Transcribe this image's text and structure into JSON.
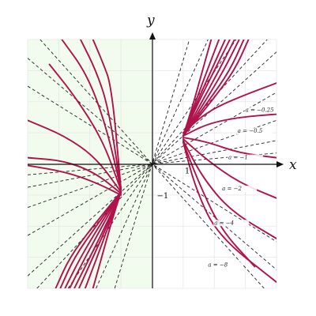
{
  "chart_data": {
    "type": "line",
    "title": "",
    "xlabel": "x",
    "ylabel": "y",
    "xlim": [
      -4,
      4
    ],
    "ylim": [
      -4,
      4
    ],
    "grid": true,
    "shaded_region": {
      "x": [
        -4,
        0
      ],
      "color": "#f1fcef"
    },
    "curve_color": "#b0124a",
    "tangent_color": "#222222",
    "tick_labels": [
      {
        "text": "1",
        "x": 1,
        "y": 0
      },
      {
        "text": "−1",
        "x": 0,
        "y": -1
      }
    ],
    "a_labels": [
      {
        "text": "a = −0.25",
        "a": -0.25
      },
      {
        "text": "a = −0.5",
        "a": -0.5
      },
      {
        "text": "a = −1",
        "a": -1
      },
      {
        "text": "a = −2",
        "a": -2
      },
      {
        "text": "a = −4",
        "a": -4
      },
      {
        "text": "a = −8",
        "a": -8
      }
    ],
    "series": [
      {
        "values": [
          {
            "x": -4,
            "y": -0.35,
            "s": 0.2
          },
          {
            "x": 4,
            "y": 0.35,
            "s": 0.2
          }
        ]
      },
      {
        "values": [
          {
            "x": -4,
            "y": -0.75,
            "s": 0.4
          },
          {
            "x": 4,
            "y": 0.75,
            "s": 0.4
          }
        ]
      },
      {
        "values": [
          {
            "x": -4,
            "y": -1.4,
            "s": 0.75
          },
          {
            "x": 4,
            "y": 1.4,
            "s": 0.75
          }
        ]
      },
      {
        "values": [
          {
            "x": -4,
            "y": -2.3,
            "s": 1.3
          },
          {
            "x": 4,
            "y": 2.3,
            "s": 1.3
          }
        ]
      },
      {
        "values": [
          {
            "x": -4,
            "y": -3.6,
            "s": 2.0
          },
          {
            "x": 4,
            "y": 3.6,
            "s": 2.0
          }
        ]
      },
      {
        "values": [
          {
            "x": -3.7,
            "y": -4,
            "s": 3.2
          },
          {
            "x": 3.7,
            "y": 4,
            "s": 3.2
          }
        ]
      },
      {
        "values": [
          {
            "x": -2.7,
            "y": -4,
            "s": 4.5
          },
          {
            "x": 2.7,
            "y": 4,
            "s": 4.5
          }
        ]
      },
      {
        "values": [
          {
            "x": -4,
            "y": 2.5,
            "s": 1.0
          },
          {
            "x": 4,
            "y": -2.5,
            "s": 1.0
          }
        ]
      },
      {
        "values": [
          {
            "x": -4,
            "y": 3.4,
            "s": 2.0
          },
          {
            "x": 4,
            "y": -3.4,
            "s": 2.0
          }
        ]
      },
      {
        "values": [
          {
            "x": -3.6,
            "y": 4,
            "s": 3.2
          },
          {
            "x": 3.6,
            "y": -4,
            "s": 3.2
          }
        ]
      },
      {
        "values": [
          {
            "x": -1.8,
            "y": -4,
            "s": 5.0
          },
          {
            "x": 1.8,
            "y": 4,
            "s": 5.0
          }
        ]
      },
      {
        "values": [
          {
            "x": -1.2,
            "y": -4,
            "s": 5.0
          },
          {
            "x": 1.2,
            "y": 4,
            "s": 5.0
          }
        ]
      }
    ],
    "curve_branches": [
      {
        "values": [
          {
            "x": 1.0,
            "y": 0.9
          },
          {
            "x": 1.3,
            "y": 1.85
          },
          {
            "x": 1.55,
            "y": 2.75
          },
          {
            "x": 1.9,
            "y": 4.0
          }
        ]
      },
      {
        "values": [
          {
            "x": 1.0,
            "y": 0.9
          },
          {
            "x": 1.4,
            "y": 2.0
          },
          {
            "x": 1.75,
            "y": 2.95
          },
          {
            "x": 2.15,
            "y": 4.0
          }
        ]
      },
      {
        "values": [
          {
            "x": 1.0,
            "y": 0.9
          },
          {
            "x": 1.45,
            "y": 2.0
          },
          {
            "x": 1.9,
            "y": 3.0
          },
          {
            "x": 2.35,
            "y": 4.0
          }
        ]
      },
      {
        "values": [
          {
            "x": 1.0,
            "y": 0.9
          },
          {
            "x": 1.5,
            "y": 2.0
          },
          {
            "x": 2.0,
            "y": 3.0
          },
          {
            "x": 2.5,
            "y": 4.0
          }
        ]
      },
      {
        "values": [
          {
            "x": 1.0,
            "y": 0.9
          },
          {
            "x": 1.6,
            "y": 2.0
          },
          {
            "x": 2.15,
            "y": 3.0
          },
          {
            "x": 2.65,
            "y": 4.0
          }
        ]
      },
      {
        "values": [
          {
            "x": 1.0,
            "y": 0.9
          },
          {
            "x": 1.7,
            "y": 2.0
          },
          {
            "x": 2.3,
            "y": 3.0
          },
          {
            "x": 2.8,
            "y": 4.0
          }
        ]
      },
      {
        "values": [
          {
            "x": 1.0,
            "y": 0.9
          },
          {
            "x": 1.8,
            "y": 2.0
          },
          {
            "x": 2.5,
            "y": 3.0
          },
          {
            "x": 2.95,
            "y": 4.0
          }
        ]
      },
      {
        "values": [
          {
            "x": 1.0,
            "y": 0.9
          },
          {
            "x": 1.9,
            "y": 2.0
          },
          {
            "x": 2.65,
            "y": 3.0
          },
          {
            "x": 3.1,
            "y": 4.0
          }
        ]
      },
      {
        "values": [
          {
            "x": 1.0,
            "y": 1.0
          },
          {
            "x": 1.8,
            "y": 1.7
          },
          {
            "x": 2.8,
            "y": 2.15
          },
          {
            "x": 4.0,
            "y": 2.6
          }
        ]
      },
      {
        "values": [
          {
            "x": 1.0,
            "y": 0.9
          },
          {
            "x": 1.8,
            "y": 1.3
          },
          {
            "x": 2.8,
            "y": 1.5
          },
          {
            "x": 4.0,
            "y": 1.6
          }
        ]
      },
      {
        "values": [
          {
            "x": 1.0,
            "y": 0.85
          },
          {
            "x": 1.8,
            "y": 0.7
          },
          {
            "x": 2.8,
            "y": 0.35
          },
          {
            "x": 4.0,
            "y": 0.2
          }
        ]
      },
      {
        "values": [
          {
            "x": 1.0,
            "y": 0.8
          },
          {
            "x": 1.8,
            "y": 0.1
          },
          {
            "x": 2.8,
            "y": -0.6
          },
          {
            "x": 4.0,
            "y": -1.1
          }
        ]
      },
      {
        "values": [
          {
            "x": 1.0,
            "y": 0.75
          },
          {
            "x": 1.6,
            "y": -0.4
          },
          {
            "x": 2.5,
            "y": -1.5
          },
          {
            "x": 4.0,
            "y": -2.4
          }
        ]
      },
      {
        "values": [
          {
            "x": 1.0,
            "y": 0.7
          },
          {
            "x": 1.5,
            "y": -0.6
          },
          {
            "x": 2.2,
            "y": -2.1
          },
          {
            "x": 3.3,
            "y": -3.3
          }
        ]
      },
      {
        "values": [
          {
            "x": 1.0,
            "y": 0.7
          },
          {
            "x": 1.4,
            "y": -0.8
          },
          {
            "x": 2.1,
            "y": -2.3
          },
          {
            "x": 4.0,
            "y": -3.8
          }
        ]
      },
      {
        "values": [
          {
            "x": -1.0,
            "y": -0.9
          },
          {
            "x": -1.3,
            "y": -1.85
          },
          {
            "x": -1.55,
            "y": -2.75
          },
          {
            "x": -1.9,
            "y": -4.0
          }
        ]
      },
      {
        "values": [
          {
            "x": -1.0,
            "y": -0.9
          },
          {
            "x": -1.4,
            "y": -2.0
          },
          {
            "x": -1.75,
            "y": -2.95
          },
          {
            "x": -2.15,
            "y": -4.0
          }
        ]
      },
      {
        "values": [
          {
            "x": -1.0,
            "y": -0.9
          },
          {
            "x": -1.45,
            "y": -2.0
          },
          {
            "x": -1.9,
            "y": -3.0
          },
          {
            "x": -2.35,
            "y": -4.0
          }
        ]
      },
      {
        "values": [
          {
            "x": -1.0,
            "y": -0.9
          },
          {
            "x": -1.5,
            "y": -2.0
          },
          {
            "x": -2.0,
            "y": -3.0
          },
          {
            "x": -2.5,
            "y": -4.0
          }
        ]
      },
      {
        "values": [
          {
            "x": -1.0,
            "y": -0.9
          },
          {
            "x": -1.6,
            "y": -2.0
          },
          {
            "x": -2.15,
            "y": -3.0
          },
          {
            "x": -2.65,
            "y": -4.0
          }
        ]
      },
      {
        "values": [
          {
            "x": -1.0,
            "y": -0.9
          },
          {
            "x": -1.7,
            "y": -2.0
          },
          {
            "x": -2.3,
            "y": -3.0
          },
          {
            "x": -2.8,
            "y": -4.0
          }
        ]
      },
      {
        "values": [
          {
            "x": -1.0,
            "y": -0.9
          },
          {
            "x": -1.8,
            "y": -2.0
          },
          {
            "x": -2.5,
            "y": -3.0
          },
          {
            "x": -2.95,
            "y": -4.0
          }
        ]
      },
      {
        "values": [
          {
            "x": -1.0,
            "y": -0.9
          },
          {
            "x": -1.9,
            "y": -2.0
          },
          {
            "x": -2.65,
            "y": -3.0
          },
          {
            "x": -3.1,
            "y": -4.0
          }
        ]
      },
      {
        "values": [
          {
            "x": -1.0,
            "y": -1.0
          },
          {
            "x": -1.8,
            "y": -0.6
          },
          {
            "x": -2.8,
            "y": -0.25
          },
          {
            "x": -4.0,
            "y": -0.05
          }
        ]
      },
      {
        "values": [
          {
            "x": -1.0,
            "y": -0.95
          },
          {
            "x": -1.8,
            "y": -0.3
          },
          {
            "x": -2.8,
            "y": 0.1
          },
          {
            "x": -4.0,
            "y": 0.2
          }
        ]
      },
      {
        "values": [
          {
            "x": -1.0,
            "y": -0.9
          },
          {
            "x": -1.8,
            "y": 0.2
          },
          {
            "x": -2.8,
            "y": 0.9
          },
          {
            "x": -4.0,
            "y": 1.4
          }
        ]
      },
      {
        "values": [
          {
            "x": -1.0,
            "y": -0.85
          },
          {
            "x": -1.6,
            "y": 0.8
          },
          {
            "x": -2.5,
            "y": 2.2
          },
          {
            "x": -3.3,
            "y": 3.2
          }
        ]
      },
      {
        "values": [
          {
            "x": -1.0,
            "y": -0.8
          },
          {
            "x": -1.5,
            "y": 1.3
          },
          {
            "x": -2.1,
            "y": 2.9
          },
          {
            "x": -2.9,
            "y": 4.0
          }
        ]
      },
      {
        "values": [
          {
            "x": -1.0,
            "y": -0.8
          },
          {
            "x": -1.4,
            "y": 1.8
          },
          {
            "x": -1.8,
            "y": 3.0
          },
          {
            "x": -2.3,
            "y": 4.0
          }
        ]
      },
      {
        "values": [
          {
            "x": -1.0,
            "y": -0.8
          },
          {
            "x": -1.3,
            "y": 2.5
          },
          {
            "x": -1.6,
            "y": 3.3
          },
          {
            "x": -1.9,
            "y": 4.0
          }
        ]
      }
    ]
  }
}
